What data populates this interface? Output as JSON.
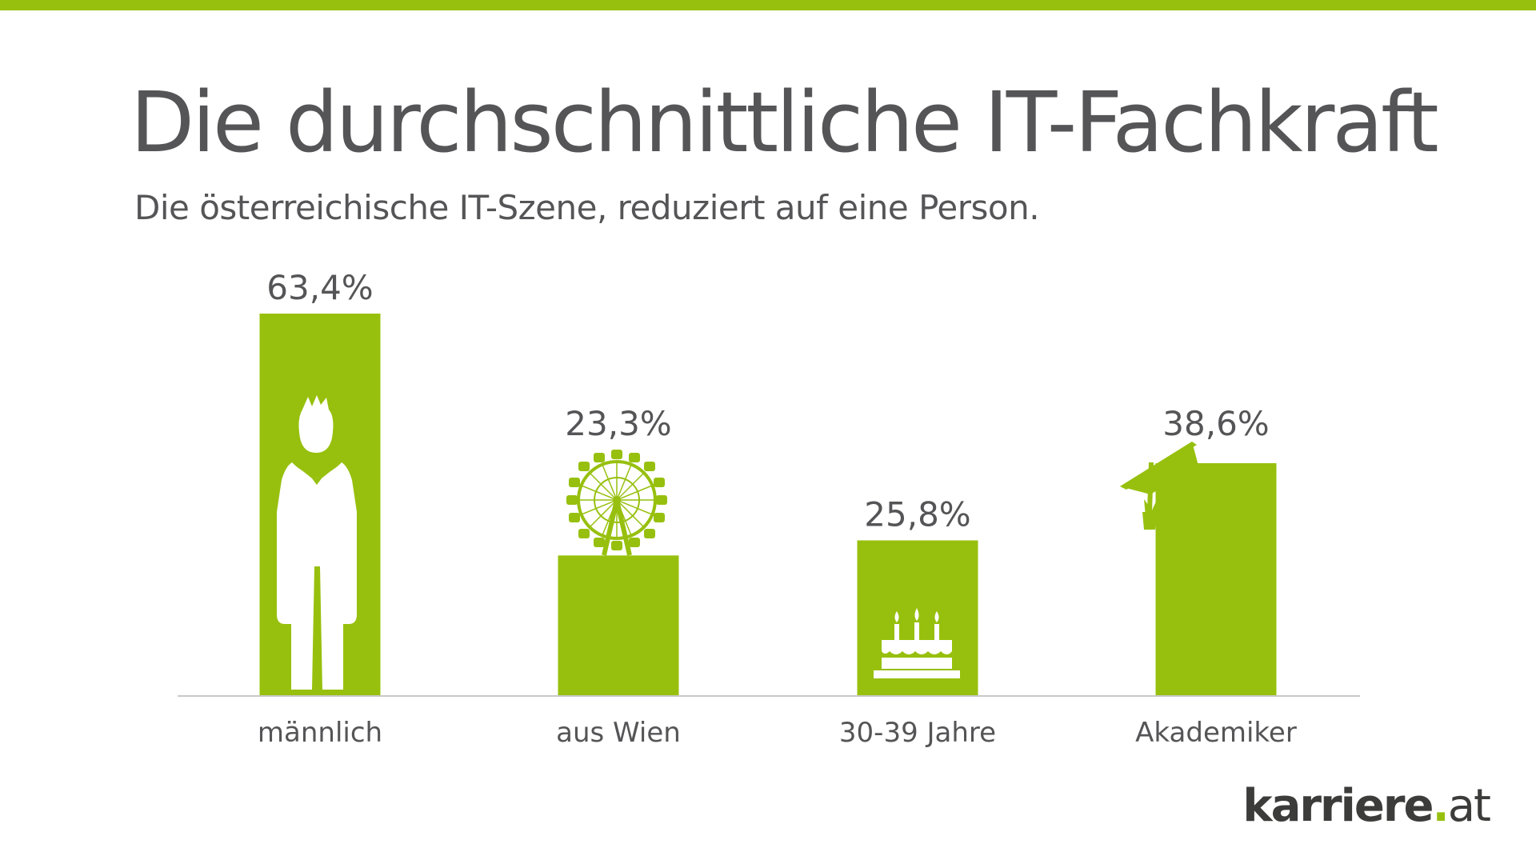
{
  "title": "Die durchschnittliche IT-Fachkraft",
  "subtitle": "Die österreichische IT-Szene, reduziert auf eine Person.",
  "colors": {
    "accent": "#97c00e",
    "text": "#555557",
    "axis": "#c8c8c8"
  },
  "logo": {
    "brand": "karriere",
    "dot": ".",
    "tld": "at"
  },
  "chart_data": {
    "type": "bar",
    "title": "Die durchschnittliche IT-Fachkraft",
    "categories": [
      "männlich",
      "aus Wien",
      "30-39 Jahre",
      "Akademiker"
    ],
    "values": [
      63.4,
      23.3,
      25.8,
      38.6
    ],
    "value_labels": [
      "63,4%",
      "23,3%",
      "25,8%",
      "38,6%"
    ],
    "icons": [
      "person-icon",
      "ferris-wheel-icon",
      "birthday-cake-icon",
      "graduation-cap-icon"
    ],
    "xlabel": "",
    "ylabel": "",
    "ylim": [
      0,
      63.4
    ],
    "grid": false,
    "legend": "none"
  }
}
